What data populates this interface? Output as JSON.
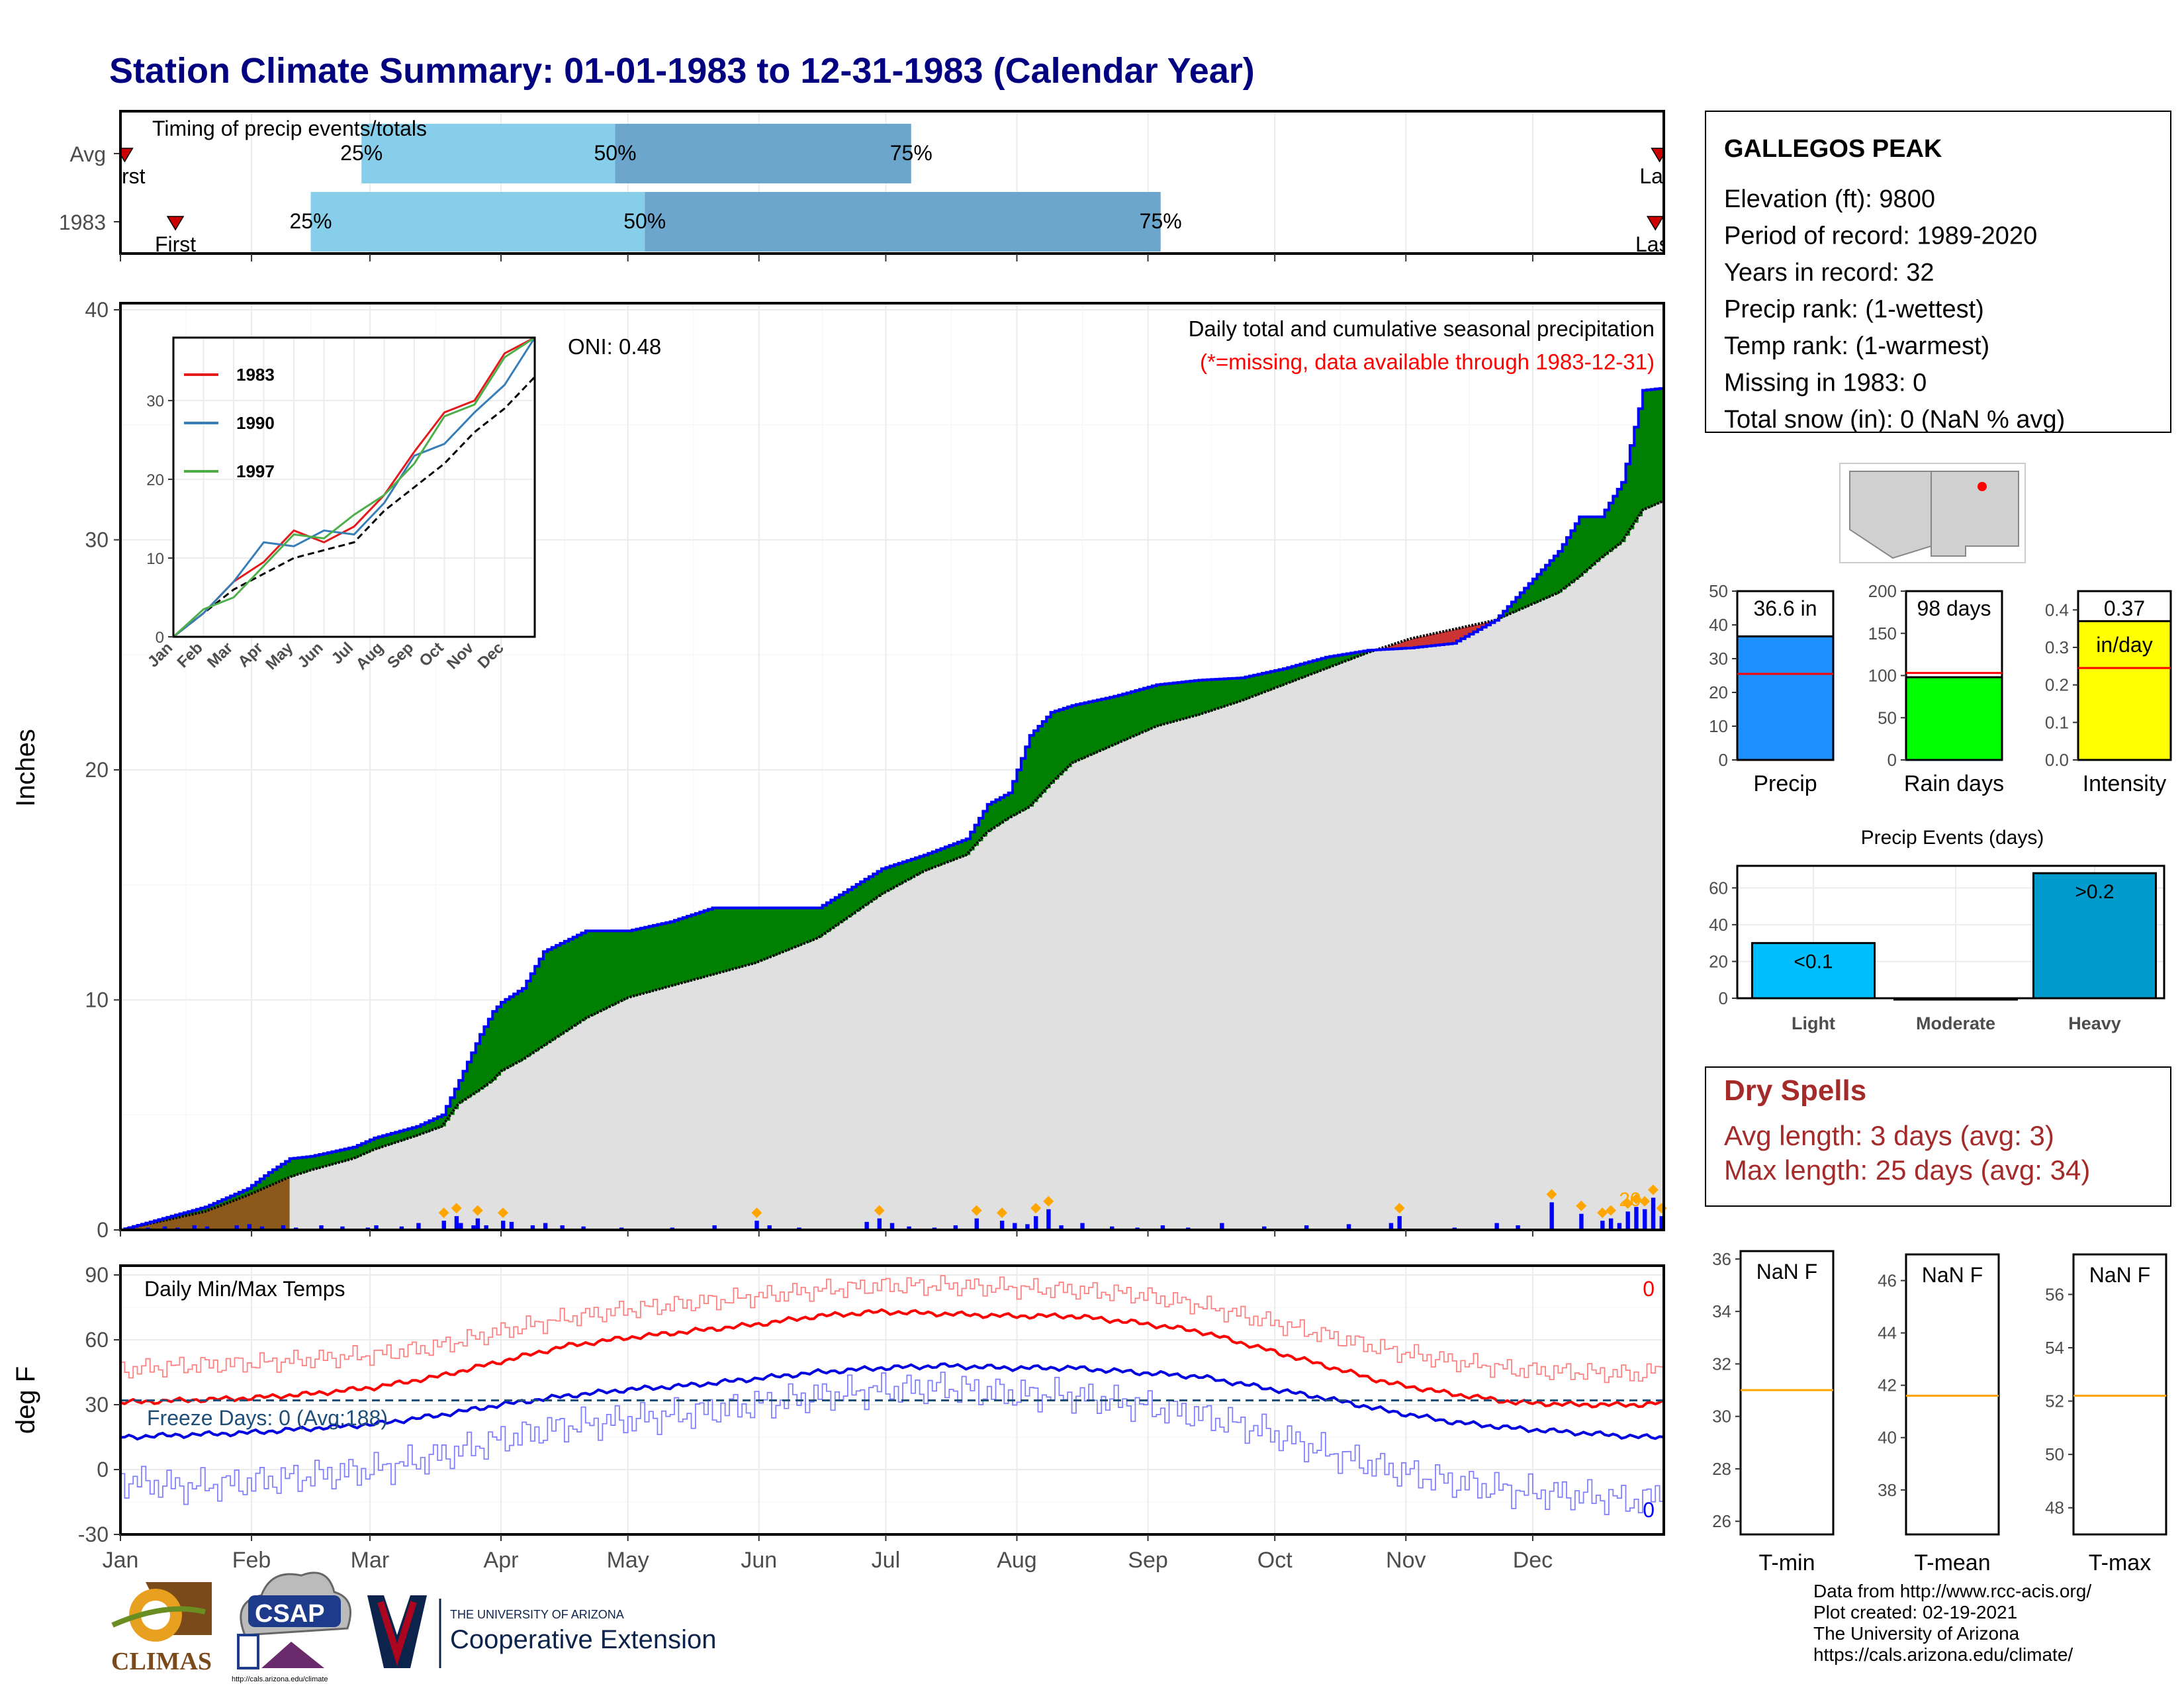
{
  "title": "Station Climate Summary: 01-01-1983 to 12-31-1983 (Calendar Year)",
  "timing_panel": {
    "title": "Timing of precip events/totals",
    "rows": [
      {
        "label": "Avg",
        "first_label": "First",
        "last_label": "Last",
        "q25": "25%",
        "q50": "50%",
        "q75": "75%"
      },
      {
        "label": "1983",
        "first_label": "First",
        "last_label": "Last",
        "q25": "25%",
        "q50": "50%",
        "q75": "75%"
      }
    ]
  },
  "station": {
    "name": "GALLEGOS PEAK",
    "lines": [
      "Elevation (ft): 9800",
      "Period of record: 1989-2020",
      "Years in record: 32",
      "Precip rank:  (1-wettest)",
      "Temp rank:  (1-warmest)",
      "Missing in 1983: 0",
      "Total snow (in): 0 (NaN % avg)"
    ]
  },
  "main_chart": {
    "subtitle": "Daily total and cumulative seasonal precipitation",
    "note": "(*=missing, data available through 1983-12-31)",
    "oni": "ONI: 0.48",
    "ylabel": "Inches",
    "bar_peak_label": "20"
  },
  "inset": {
    "legend": [
      "1983",
      "1990",
      "1997"
    ],
    "months": [
      "Jan",
      "Feb",
      "Mar",
      "Apr",
      "May",
      "Jun",
      "Jul",
      "Aug",
      "Sep",
      "Oct",
      "Nov",
      "Dec"
    ]
  },
  "temp_chart": {
    "title": "Daily Min/Max Temps",
    "ylabel": "deg F",
    "freeze": "Freeze Days: 0 (Avg:188)",
    "count_max": "0",
    "count_min": "0"
  },
  "months": [
    "Jan",
    "Feb",
    "Mar",
    "Apr",
    "May",
    "Jun",
    "Jul",
    "Aug",
    "Sep",
    "Oct",
    "Nov",
    "Dec"
  ],
  "summary_bars": [
    {
      "label": "Precip",
      "value_label": "36.6 in"
    },
    {
      "label": "Rain days",
      "value_label": "98 days"
    },
    {
      "label": "Intensity",
      "value_label": "0.37",
      "unit": "in/day"
    }
  ],
  "events": {
    "title": "Precip Events (days)",
    "bars": [
      {
        "label": "Light",
        "tag": "<0.1"
      },
      {
        "label": "Moderate",
        "tag": ""
      },
      {
        "label": "Heavy",
        "tag": ">0.2"
      }
    ]
  },
  "dry_spells": {
    "title": "Dry Spells",
    "avg": "Avg length: 3 days (avg: 3)",
    "max": "Max length: 25 days (avg: 34)"
  },
  "temp_boxes": [
    {
      "label": "T-min",
      "value": "NaN F"
    },
    {
      "label": "T-mean",
      "value": "NaN F"
    },
    {
      "label": "T-max",
      "value": "NaN F"
    }
  ],
  "footer": {
    "credits": [
      "Data from http://www.rcc-acis.org/",
      "Plot created: 02-19-2021",
      "The University of Arizona",
      "https://cals.arizona.edu/climate/"
    ],
    "logo1": "CLIMAS",
    "logo2": "CSAP",
    "logo2_url": "http://cals.arizona.edu/climate",
    "ua_small": "THE UNIVERSITY OF ARIZONA",
    "ua_big": "Cooperative Extension"
  },
  "colors": {
    "title": "#000080",
    "cum_above": "#008000",
    "cum_below": "#ff0000",
    "avg_fill": "#e0e0e0",
    "early_fill": "#8b5a1a",
    "bars": "#0000ff",
    "marker": "#ffa500",
    "q1": "#87ceeb",
    "q2": "#6ca6cd",
    "precip_bar": "#1e90ff",
    "rain_bar": "#00ff00",
    "intensity_bar": "#ffff00",
    "light_bar": "#00bfff",
    "heavy_bar": "#009acd",
    "dry_title": "#a52a2a"
  },
  "chart_data": [
    {
      "type": "area",
      "name": "cumulative_precip",
      "x_days": [
        0,
        10,
        20,
        30,
        35,
        40,
        45,
        55,
        60,
        70,
        76,
        80,
        85,
        88,
        90,
        95,
        100,
        110,
        120,
        130,
        140,
        150,
        165,
        180,
        190,
        200,
        205,
        210,
        215,
        220,
        225,
        235,
        245,
        255,
        265,
        275,
        285,
        295,
        305,
        315,
        325,
        335,
        340,
        345,
        350,
        355,
        360,
        365
      ],
      "cum_1983": [
        0,
        0.5,
        1.0,
        1.8,
        2.5,
        3.1,
        3.2,
        3.6,
        4.0,
        4.5,
        5.0,
        6.5,
        8.5,
        9.5,
        9.9,
        10.5,
        12.1,
        13.0,
        13.0,
        13.4,
        14.0,
        14.0,
        14.0,
        15.7,
        16.3,
        17.0,
        18.5,
        19.0,
        21.5,
        22.5,
        22.8,
        23.2,
        23.7,
        23.9,
        24.0,
        24.4,
        24.9,
        25.2,
        25.3,
        25.5,
        26.5,
        28.5,
        29.5,
        31.0,
        31.0,
        32.5,
        36.5,
        36.6
      ],
      "avg": [
        0,
        0.4,
        0.8,
        1.5,
        1.9,
        2.3,
        2.6,
        3.1,
        3.5,
        4.1,
        4.5,
        5.5,
        6.1,
        6.5,
        6.9,
        7.4,
        8.0,
        9.2,
        10.1,
        10.6,
        11.1,
        11.6,
        12.7,
        14.6,
        15.6,
        16.3,
        17.3,
        17.9,
        18.4,
        19.4,
        20.3,
        21.1,
        21.9,
        22.4,
        23.0,
        23.7,
        24.4,
        25.1,
        25.7,
        26.1,
        26.5,
        27.3,
        27.7,
        28.4,
        29.2,
        29.9,
        31.3,
        31.7
      ],
      "ylim": [
        0,
        40
      ],
      "yticks": [
        0,
        10,
        20,
        30,
        40
      ]
    },
    {
      "type": "bar",
      "name": "daily_precip",
      "days": [
        3,
        6,
        10,
        13,
        17,
        20,
        27,
        30,
        33,
        38,
        41,
        47,
        52,
        58,
        60,
        66,
        70,
        76,
        79,
        80,
        83,
        84,
        86,
        90,
        92,
        97,
        100,
        104,
        109,
        118,
        130,
        140,
        150,
        153,
        160,
        176,
        179,
        182,
        186,
        192,
        197,
        202,
        208,
        211,
        214,
        216,
        219,
        222,
        227,
        234,
        240,
        246,
        252,
        260,
        270,
        280,
        290,
        300,
        302,
        315,
        325,
        330,
        338,
        345,
        350,
        352,
        354,
        356,
        358,
        360,
        362,
        364
      ],
      "values": [
        0.05,
        0.1,
        0.15,
        0.1,
        0.2,
        0.15,
        0.2,
        0.25,
        0.15,
        0.2,
        0.1,
        0.2,
        0.15,
        0.1,
        0.2,
        0.15,
        0.3,
        0.4,
        0.6,
        0.3,
        0.2,
        0.5,
        0.2,
        0.4,
        0.35,
        0.2,
        0.3,
        0.2,
        0.15,
        0.1,
        0.1,
        0.2,
        0.4,
        0.2,
        0.1,
        0.35,
        0.5,
        0.3,
        0.15,
        0.1,
        0.2,
        0.5,
        0.4,
        0.3,
        0.25,
        0.6,
        0.9,
        0.2,
        0.3,
        0.15,
        0.1,
        0.2,
        0.1,
        0.3,
        0.15,
        0.2,
        0.25,
        0.3,
        0.6,
        0.1,
        0.3,
        0.2,
        1.2,
        0.7,
        0.4,
        0.5,
        0.3,
        0.8,
        1.0,
        0.9,
        1.4,
        0.6
      ]
    },
    {
      "type": "line",
      "name": "daily_temps",
      "ylim": [
        -30,
        90
      ],
      "yticks": [
        -30,
        0,
        30,
        60,
        90
      ],
      "x_days": [
        0,
        15,
        30,
        45,
        60,
        75,
        90,
        105,
        120,
        135,
        150,
        165,
        180,
        195,
        210,
        225,
        240,
        255,
        270,
        285,
        300,
        315,
        330,
        345,
        360,
        365
      ],
      "max_avg": [
        31,
        32,
        33,
        35,
        38,
        43,
        50,
        57,
        61,
        64,
        67,
        71,
        73,
        72,
        71,
        71,
        68,
        64,
        56,
        48,
        40,
        35,
        31,
        30,
        30,
        31
      ],
      "min_avg": [
        15,
        16,
        17,
        19,
        21,
        25,
        30,
        34,
        37,
        39,
        42,
        45,
        47,
        48,
        47,
        47,
        45,
        43,
        38,
        33,
        27,
        22,
        19,
        17,
        15,
        15
      ],
      "max_rec": [
        46,
        48,
        49,
        51,
        53,
        57,
        64,
        70,
        74,
        77,
        80,
        83,
        85,
        85,
        84,
        83,
        81,
        76,
        69,
        62,
        55,
        50,
        46,
        45,
        44,
        47
      ],
      "min_rec": [
        -5,
        -8,
        -6,
        -3,
        0,
        6,
        14,
        20,
        23,
        26,
        30,
        34,
        37,
        38,
        35,
        34,
        30,
        25,
        18,
        8,
        0,
        -6,
        -10,
        -12,
        -15,
        -8
      ],
      "freeze_line": 32
    },
    {
      "type": "line",
      "name": "inset_cumulative",
      "series": [
        {
          "name": "1983",
          "x": [
            0,
            1,
            2,
            3,
            4,
            5,
            6,
            7,
            8,
            9,
            10,
            11,
            12
          ],
          "values": [
            0,
            3,
            6,
            10,
            13,
            13,
            14,
            17,
            24,
            28,
            31,
            36,
            38
          ]
        },
        {
          "name": "1990",
          "x": [
            0,
            1,
            2,
            3,
            4,
            5,
            6,
            7,
            8,
            9,
            10,
            11,
            12
          ],
          "values": [
            0,
            4,
            7,
            11,
            12,
            13,
            14,
            17,
            22,
            25,
            28,
            33,
            38
          ]
        },
        {
          "name": "1997",
          "x": [
            0,
            1,
            2,
            3,
            4,
            5,
            6,
            7,
            8,
            9,
            10,
            11,
            12
          ],
          "values": [
            0,
            3,
            6,
            9,
            12,
            13,
            15,
            19,
            22,
            27,
            30,
            35,
            38
          ]
        }
      ],
      "avg": [
        0,
        3,
        6,
        8,
        10,
        11,
        12,
        16,
        19,
        22,
        26,
        29,
        33
      ],
      "ylim": [
        0,
        38
      ],
      "yticks": [
        0,
        10,
        20,
        30
      ]
    },
    {
      "type": "bar",
      "name": "precip_summary",
      "ylim": [
        0,
        50
      ],
      "yticks": [
        0,
        10,
        20,
        30,
        40,
        50
      ],
      "values": [
        36.6
      ],
      "avg": 25.5
    },
    {
      "type": "bar",
      "name": "rain_days",
      "ylim": [
        0,
        200
      ],
      "yticks": [
        0,
        50,
        100,
        150,
        200
      ],
      "values": [
        98
      ],
      "avg": 103
    },
    {
      "type": "bar",
      "name": "intensity",
      "ylim": [
        0,
        0.45
      ],
      "yticks": [
        0.0,
        0.1,
        0.2,
        0.3,
        0.4
      ],
      "values": [
        0.37
      ],
      "avg": 0.245
    },
    {
      "type": "bar",
      "name": "precip_events",
      "categories": [
        "Light",
        "Moderate",
        "Heavy"
      ],
      "values": [
        30,
        0,
        68
      ],
      "ylim": [
        0,
        72
      ],
      "yticks": [
        0,
        20,
        40,
        60
      ]
    },
    {
      "type": "bar",
      "name": "temp_boxes",
      "panels": [
        {
          "ylim": [
            25.5,
            36.3
          ],
          "yticks": [
            26,
            28,
            30,
            32,
            34,
            36
          ],
          "avg": 31.0
        },
        {
          "ylim": [
            36.3,
            47.0
          ],
          "yticks": [
            38,
            40,
            42,
            44,
            46
          ],
          "avg": 41.6
        },
        {
          "ylim": [
            47,
            57.5
          ],
          "yticks": [
            48,
            50,
            52,
            54,
            56
          ],
          "avg": 52.2
        }
      ]
    }
  ]
}
